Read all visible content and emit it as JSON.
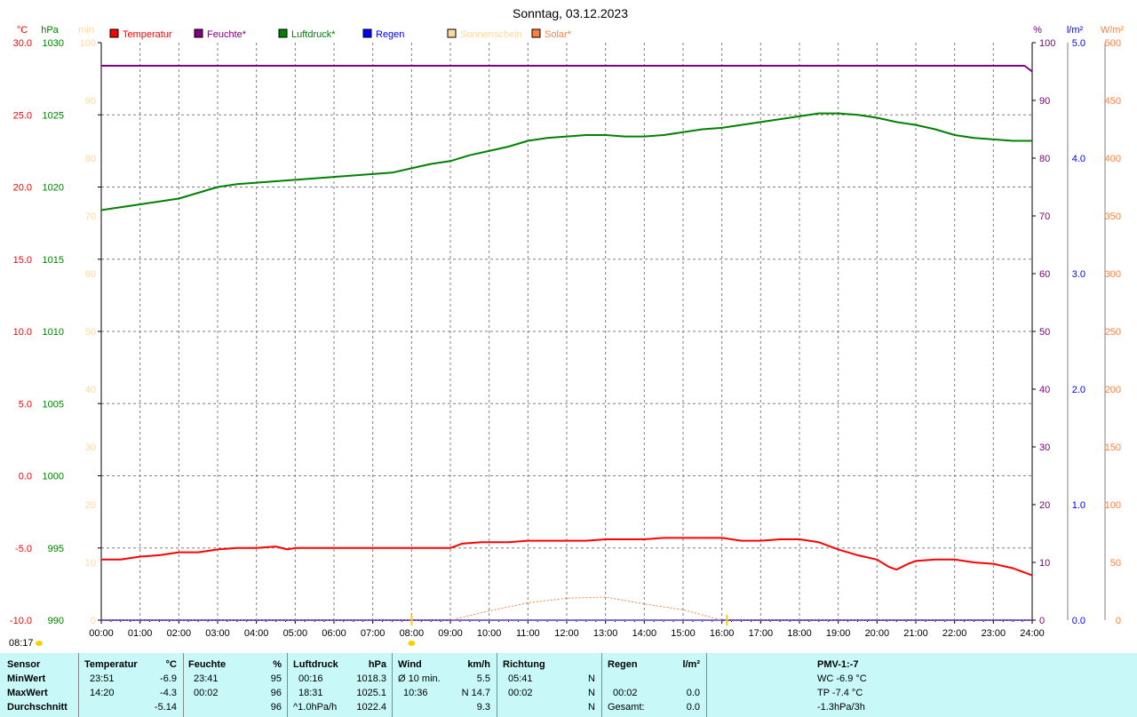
{
  "chart_data": {
    "type": "line",
    "title": "Sonntag, 03.12.2023",
    "axis_units": {
      "temp": "°C",
      "pressure": "hPa",
      "sun": "min",
      "humidity": "%",
      "rain": "l/m²",
      "solar": "W/m²"
    },
    "ylim": {
      "temp": [
        -10,
        30
      ],
      "pressure": [
        990,
        1030
      ],
      "sun": [
        0,
        100
      ],
      "humidity": [
        0,
        100
      ],
      "rain": [
        0,
        5
      ],
      "solar": [
        0,
        500
      ]
    },
    "yticks": {
      "temp": [
        "30.0",
        "25.0",
        "20.0",
        "15.0",
        "10.0",
        "5.0",
        "0.0",
        "-5.0",
        "-10.0"
      ],
      "pressure": [
        "1030",
        "1025",
        "1020",
        "1015",
        "1010",
        "1005",
        "1000",
        "995",
        "990"
      ],
      "sun": [
        "100",
        "90",
        "80",
        "70",
        "60",
        "50",
        "40",
        "30",
        "20",
        "10",
        "0"
      ],
      "humidity": [
        "100",
        "90",
        "80",
        "70",
        "60",
        "50",
        "40",
        "30",
        "20",
        "10",
        "0"
      ],
      "rain": [
        "5.0",
        "4.0",
        "3.0",
        "2.0",
        "1.0",
        "0.0"
      ],
      "solar": [
        "500",
        "450",
        "400",
        "350",
        "300",
        "250",
        "200",
        "150",
        "100",
        "50",
        "0"
      ]
    },
    "x_ticks": [
      "00:00",
      "01:00",
      "02:00",
      "03:00",
      "04:00",
      "05:00",
      "06:00",
      "07:00",
      "08:00",
      "09:00",
      "10:00",
      "11:00",
      "12:00",
      "13:00",
      "14:00",
      "15:00",
      "16:00",
      "17:00",
      "18:00",
      "19:00",
      "20:00",
      "21:00",
      "22:00",
      "23:00",
      "24:00"
    ],
    "grid": true,
    "legend_position": "top",
    "series": [
      {
        "name": "Temperatur",
        "axis": "temp",
        "color": "#ff0000",
        "x": [
          0,
          0.5,
          1,
          1.5,
          2,
          2.5,
          3,
          3.5,
          4,
          4.5,
          4.8,
          5,
          5.5,
          6,
          7,
          8,
          9,
          9.3,
          9.8,
          10.5,
          11,
          11.5,
          12,
          12.5,
          13,
          13.5,
          14,
          14.5,
          15,
          15.5,
          16,
          16.5,
          17,
          17.5,
          18,
          18.5,
          19,
          19.5,
          20,
          20.3,
          20.5,
          20.8,
          21,
          21.5,
          22,
          22.5,
          23,
          23.5,
          24
        ],
        "values": [
          -5.8,
          -5.8,
          -5.6,
          -5.5,
          -5.3,
          -5.3,
          -5.1,
          -5.0,
          -5.0,
          -4.9,
          -5.1,
          -5.0,
          -5.0,
          -5.0,
          -5.0,
          -5.0,
          -5.0,
          -4.7,
          -4.6,
          -4.6,
          -4.5,
          -4.5,
          -4.5,
          -4.5,
          -4.4,
          -4.4,
          -4.4,
          -4.3,
          -4.3,
          -4.3,
          -4.3,
          -4.5,
          -4.5,
          -4.4,
          -4.4,
          -4.6,
          -5.1,
          -5.5,
          -5.8,
          -6.3,
          -6.5,
          -6.1,
          -5.9,
          -5.8,
          -5.8,
          -6.0,
          -6.1,
          -6.4,
          -6.9
        ]
      },
      {
        "name": "Feuchte*",
        "axis": "humidity",
        "color": "#800080",
        "x": [
          0,
          23.8,
          24
        ],
        "values": [
          96,
          96,
          95
        ]
      },
      {
        "name": "Luftdruck*",
        "axis": "pressure",
        "color": "#008000",
        "x": [
          0,
          0.5,
          1,
          1.5,
          2,
          2.5,
          3,
          3.5,
          4,
          4.5,
          5,
          5.5,
          6,
          6.5,
          7,
          7.5,
          8,
          8.5,
          9,
          9.5,
          10,
          10.5,
          11,
          11.5,
          12,
          12.5,
          13,
          13.5,
          14,
          14.5,
          15,
          15.5,
          16,
          16.5,
          17,
          17.5,
          18,
          18.5,
          19,
          19.5,
          20,
          20.5,
          21,
          21.5,
          22,
          22.5,
          23,
          23.5,
          24
        ],
        "values": [
          1018.4,
          1018.6,
          1018.8,
          1019.0,
          1019.2,
          1019.6,
          1020.0,
          1020.2,
          1020.3,
          1020.4,
          1020.5,
          1020.6,
          1020.7,
          1020.8,
          1020.9,
          1021.0,
          1021.3,
          1021.6,
          1021.8,
          1022.2,
          1022.5,
          1022.8,
          1023.2,
          1023.4,
          1023.5,
          1023.6,
          1023.6,
          1023.5,
          1023.5,
          1023.6,
          1023.8,
          1024.0,
          1024.1,
          1024.3,
          1024.5,
          1024.7,
          1024.9,
          1025.1,
          1025.1,
          1025.0,
          1024.8,
          1024.5,
          1024.3,
          1024.0,
          1023.6,
          1023.4,
          1023.3,
          1023.2,
          1023.2
        ]
      },
      {
        "name": "Regen",
        "axis": "rain",
        "color": "#0000ff",
        "x": [
          0,
          24
        ],
        "values": [
          0,
          0
        ]
      },
      {
        "name": "Sonnenschein",
        "axis": "sun",
        "color": "#ffd8a0",
        "x": [
          0,
          24
        ],
        "values": [
          0,
          0
        ]
      },
      {
        "name": "Solar*",
        "axis": "solar",
        "color": "#ff8040",
        "x": [
          0,
          9,
          10,
          11,
          12,
          13,
          14,
          15,
          16,
          16.1,
          24
        ],
        "values": [
          0,
          0,
          8,
          15,
          19,
          20,
          14,
          9,
          0,
          0,
          0
        ]
      }
    ],
    "markers": {
      "sunrise_time": "08:17",
      "sunrise_x": 8.0,
      "sunset_x": 16.13
    }
  },
  "stats": {
    "headers": {
      "sensor": "Sensor",
      "temperatur": "Temperatur",
      "temp_unit": "°C",
      "feuchte": "Feuchte",
      "feuchte_unit": "%",
      "luftdruck": "Luftdruck",
      "luftdruck_unit": "hPa",
      "wind": "Wind",
      "wind_unit": "km/h",
      "richtung": "Richtung",
      "regen": "Regen",
      "regen_unit": "l/m²",
      "pmv": "PMV-1:-7"
    },
    "rows": [
      {
        "label": "MinWert",
        "t_time": "23:51",
        "t_val": "-6.9",
        "f_time": "23:41",
        "f_val": "95",
        "l_time": "00:16",
        "l_val": "1018.3",
        "w_label": "Ø 10 min.",
        "w_val": "5.5",
        "r_time": "05:41",
        "r_dir": "N",
        "rg_time": "",
        "rg_val": "",
        "extra": "WC -6.9 °C"
      },
      {
        "label": "MaxWert",
        "t_time": "14:20",
        "t_val": "-4.3",
        "f_time": "00:02",
        "f_val": "96",
        "l_time": "18:31",
        "l_val": "1025.1",
        "w_label": "10:36",
        "w_val": "N 14.7",
        "r_time": "00:02",
        "r_dir": "N",
        "rg_time": "00:02",
        "rg_val": "0.0",
        "extra": "TP -7.4 °C"
      },
      {
        "label": "Durchschnitt",
        "t_time": "",
        "t_val": "-5.14",
        "f_time": "",
        "f_val": "96",
        "l_time": "^1.0hPa/h",
        "l_val": "1022.4",
        "w_label": "",
        "w_val": "9.3",
        "r_time": "",
        "r_dir": "N",
        "rg_time": "Gesamt:",
        "rg_val": "0.0",
        "extra": "-1.3hPa/3h"
      }
    ]
  }
}
